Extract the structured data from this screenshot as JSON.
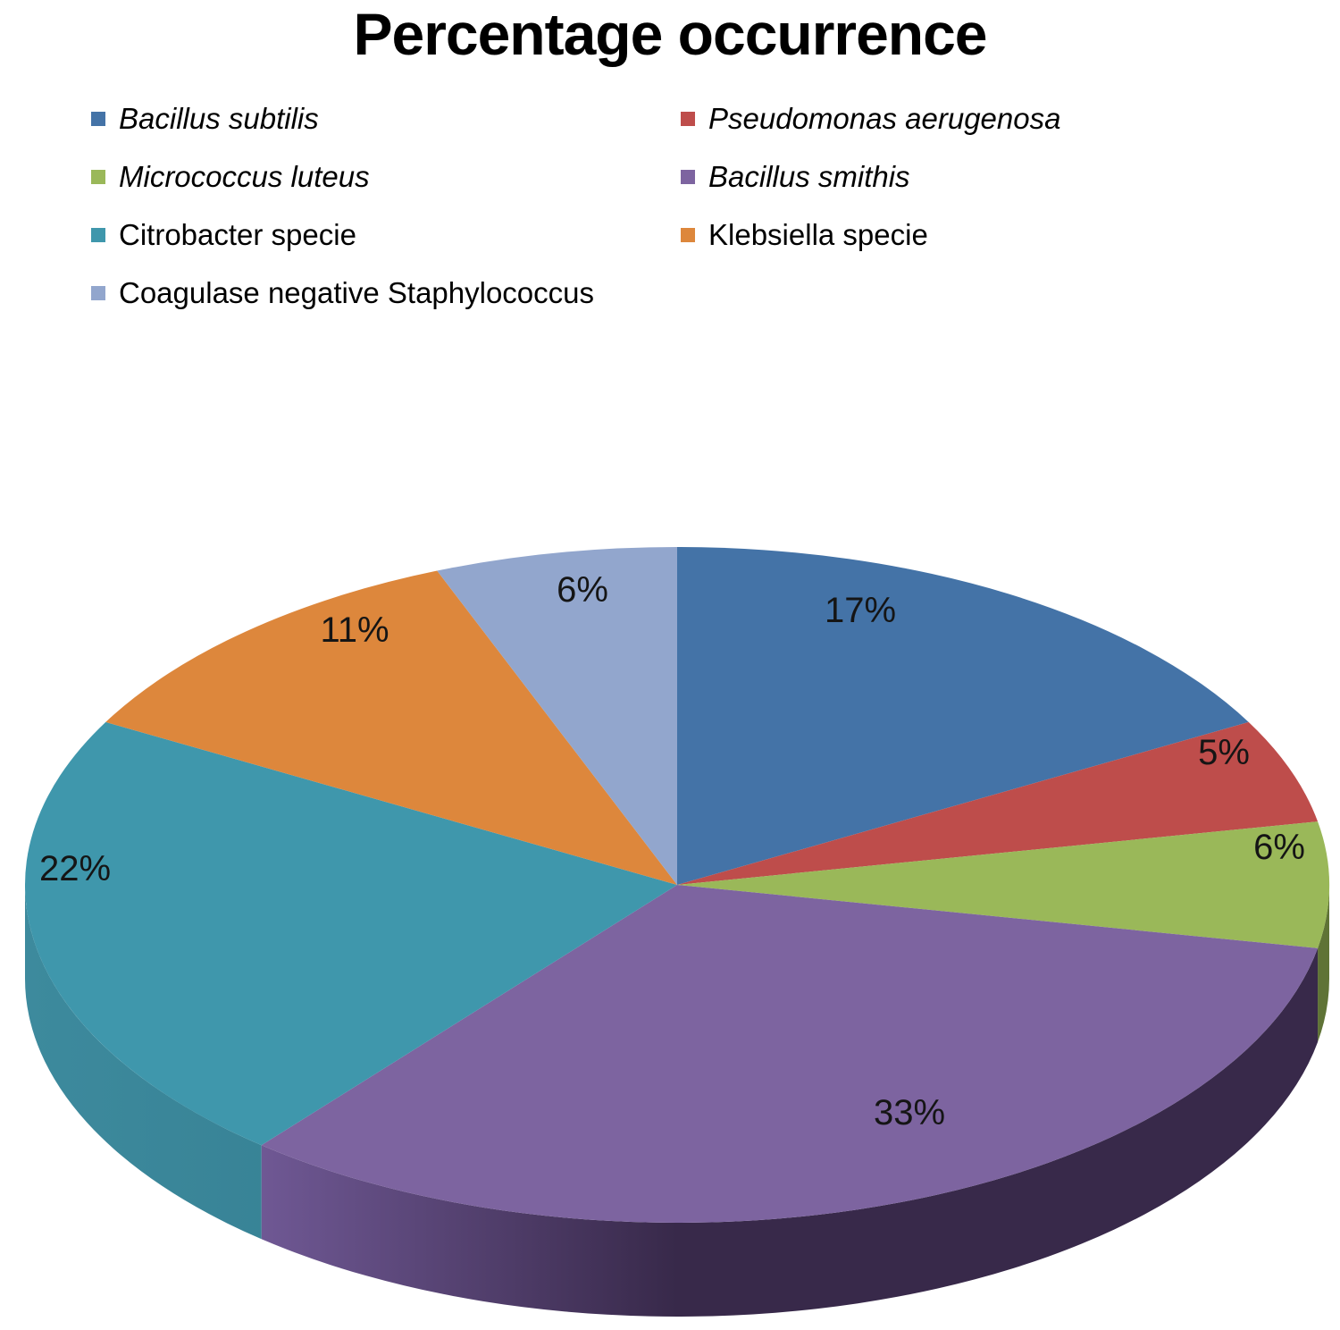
{
  "chart_data": {
    "type": "pie",
    "effect": "3d",
    "title": "Percentage occurrence",
    "unit": "%",
    "legend_position": "top-left, two columns",
    "start_angle_deg": 0,
    "direction": "clockwise",
    "categories": [
      "Bacillus subtilis",
      "Pseudomonas aerugenosa",
      "Micrococcus luteus",
      "Bacillus smithis",
      "Citrobacter specie",
      "Klebsiella specie",
      "Coagulase negative Staphylococcus"
    ],
    "values": [
      17,
      5,
      6,
      33,
      22,
      11,
      6
    ],
    "slices": [
      {
        "name": "Bacillus subtilis",
        "value": 17,
        "pct_label": "17%",
        "color": "#4473A7",
        "italic": true
      },
      {
        "name": "Pseudomonas aerugenosa",
        "value": 5,
        "pct_label": "5%",
        "color": "#BE4D4B",
        "italic": true
      },
      {
        "name": "Micrococcus luteus",
        "value": 6,
        "pct_label": "6%",
        "color": "#9AB859",
        "italic": true,
        "side_color": "#5F7336"
      },
      {
        "name": "Bacillus smithis",
        "value": 33,
        "pct_label": "33%",
        "color": "#7D64A0",
        "italic": true,
        "side_color": "#38294A",
        "side_color_left": "#6F5894"
      },
      {
        "name": "Citrobacter specie",
        "value": 22,
        "pct_label": "22%",
        "color": "#3F97AC",
        "italic": false,
        "side_color": "#30788B",
        "side_color_left": "#3D8A9D"
      },
      {
        "name": "Klebsiella specie",
        "value": 11,
        "pct_label": "11%",
        "color": "#DD873C",
        "italic": false
      },
      {
        "name": "Coagulase negative Staphylococcus",
        "value": 6,
        "pct_label": "6%",
        "color": "#92A6CD",
        "italic": false
      }
    ]
  }
}
